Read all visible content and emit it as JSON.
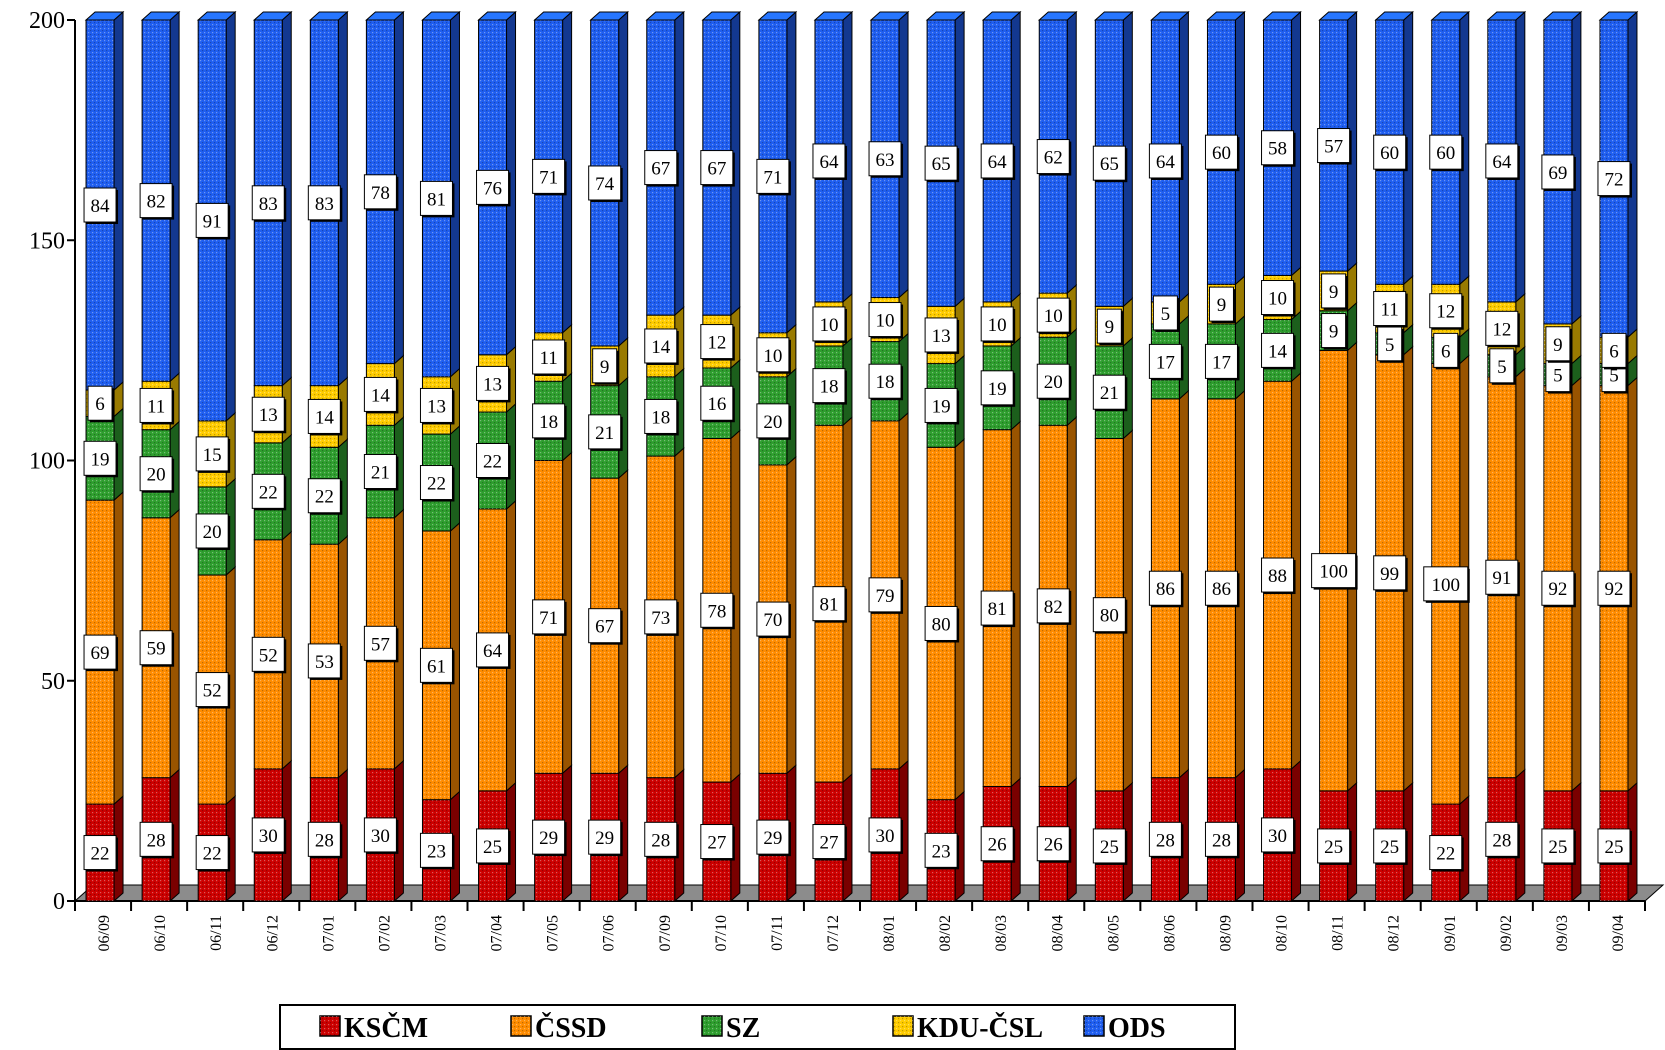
{
  "chart_data": {
    "type": "bar",
    "stacked": true,
    "three_d": true,
    "ylim": [
      0,
      200
    ],
    "yticks": [
      0,
      50,
      100,
      150,
      200
    ],
    "grid": false,
    "legend_position": "bottom",
    "categories": [
      "06/09",
      "06/10",
      "06/11",
      "06/12",
      "07/01",
      "07/02",
      "07/03",
      "07/04",
      "07/05",
      "07/06",
      "07/09",
      "07/10",
      "07/11",
      "07/12",
      "08/01",
      "08/02",
      "08/03",
      "08/04",
      "08/05",
      "08/06",
      "08/09",
      "08/10",
      "08/11",
      "08/12",
      "09/01",
      "09/02",
      "09/03",
      "09/04"
    ],
    "series": [
      {
        "name": "KSČM",
        "color": "#cc0000",
        "values": [
          22,
          28,
          22,
          30,
          28,
          30,
          23,
          25,
          29,
          29,
          28,
          27,
          29,
          27,
          30,
          23,
          26,
          26,
          25,
          28,
          28,
          30,
          25,
          25,
          22,
          28,
          25,
          25
        ]
      },
      {
        "name": "ČSSD",
        "color": "#ff8c00",
        "values": [
          69,
          59,
          52,
          52,
          53,
          57,
          61,
          64,
          71,
          67,
          73,
          78,
          70,
          81,
          79,
          80,
          81,
          82,
          80,
          86,
          86,
          88,
          100,
          99,
          100,
          91,
          92,
          92
        ]
      },
      {
        "name": "SZ",
        "color": "#2e9e2e",
        "values": [
          19,
          20,
          20,
          22,
          22,
          21,
          22,
          22,
          18,
          21,
          18,
          16,
          20,
          18,
          18,
          19,
          19,
          20,
          21,
          17,
          17,
          14,
          9,
          5,
          6,
          5,
          5,
          5
        ]
      },
      {
        "name": "KDU-ČSL",
        "color": "#ffcc00",
        "values": [
          6,
          11,
          15,
          13,
          14,
          14,
          13,
          13,
          11,
          9,
          14,
          12,
          10,
          10,
          10,
          13,
          10,
          10,
          9,
          5,
          9,
          10,
          9,
          11,
          12,
          12,
          9,
          6
        ]
      },
      {
        "name": "ODS",
        "color": "#1f5ef0",
        "values": [
          84,
          82,
          91,
          83,
          83,
          78,
          81,
          76,
          71,
          74,
          67,
          67,
          71,
          64,
          63,
          65,
          64,
          62,
          65,
          64,
          60,
          58,
          57,
          60,
          60,
          64,
          69,
          72
        ]
      }
    ]
  }
}
